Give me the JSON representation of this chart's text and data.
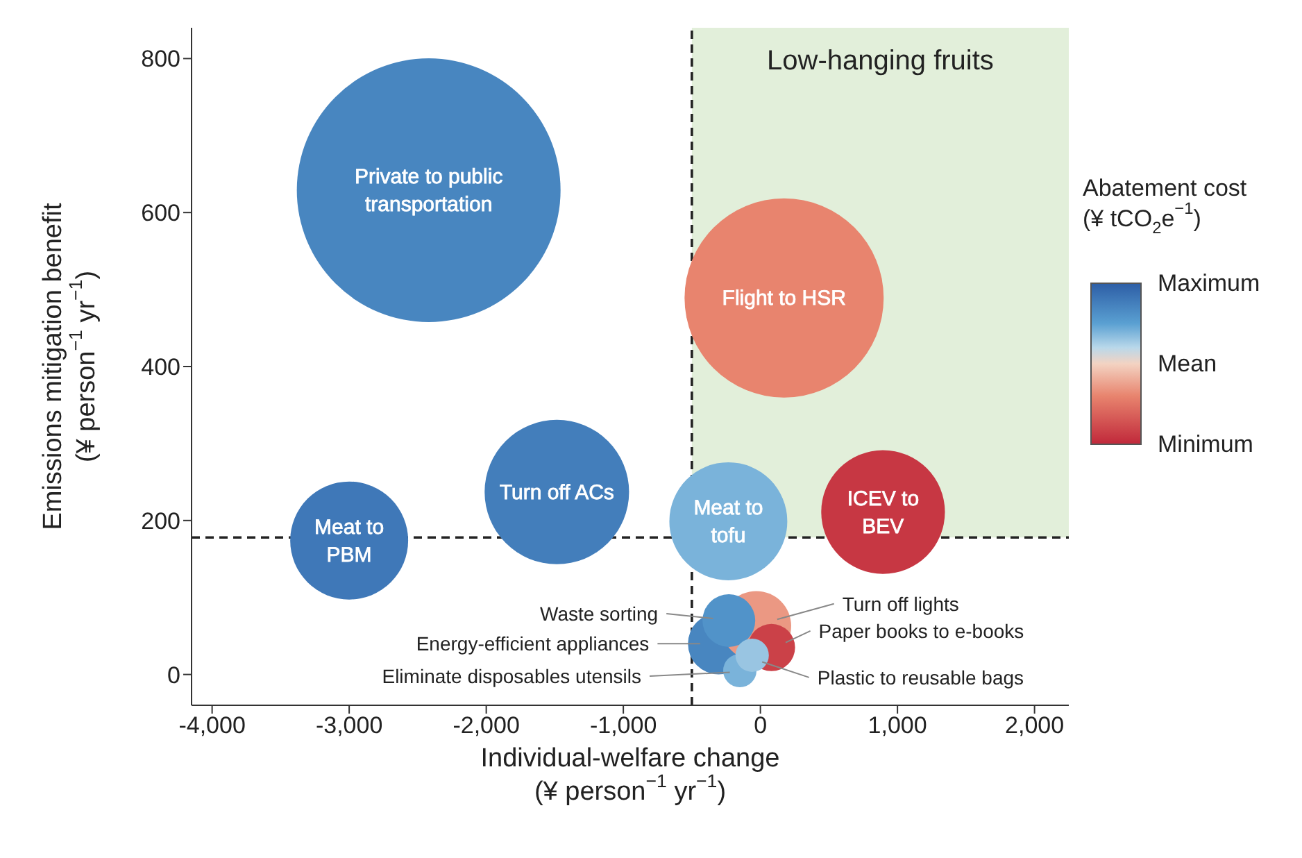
{
  "chart_data": {
    "type": "bubble",
    "xlabel": "Individual-welfare change\n(¥ person$^{−1}$ yr$^{−1}$)",
    "ylabel": "Emissions mitigation benefit\n(¥ person$^{−1}$ yr$^{−1}$)",
    "clabel": "Abatement cost\n(¥ tCO$_{2}$e$^{−1}$)",
    "clim": [
      0,
      1
    ],
    "cticks": [
      {
        "value": 1,
        "label": "Maximum"
      },
      {
        "value": 0.5,
        "label": "Mean"
      },
      {
        "value": 0,
        "label": "Minimum"
      }
    ],
    "xlim": [
      -4150,
      2250
    ],
    "xticks": [
      {
        "value": -4000,
        "label": "-4,000"
      },
      {
        "value": -3000,
        "label": "-3,000"
      },
      {
        "value": -2000,
        "label": "-2,000"
      },
      {
        "value": -1000,
        "label": "-1,000"
      },
      0,
      {
        "value": 1000,
        "label": "1,000"
      },
      {
        "value": 2000,
        "label": "2,000"
      }
    ],
    "ylim": [
      -40,
      840
    ],
    "yticks": [
      0,
      200,
      400,
      600,
      800
    ],
    "marker": "circle",
    "ref_lines": [
      {
        "axis": "x",
        "value": -500,
        "line_style": "dashed",
        "color": "#222222"
      },
      {
        "axis": "y",
        "value": 178,
        "line_style": "dashed",
        "color": "#222222"
      }
    ],
    "bands": [
      {
        "axis": "x",
        "from": -500,
        "to": 2250,
        "label": "Low-hanging fruits",
        "color": "#e2efda"
      }
    ],
    "series": [
      {
        "name": "Private to public\ntransportation",
        "x": [
          -2420
        ],
        "values": [
          629
        ],
        "sizes": [
          1
        ],
        "cvalues": [
          0.85
        ]
      },
      {
        "name": "Flight to HSR",
        "x": [
          173
        ],
        "values": [
          489
        ],
        "sizes": [
          0.57
        ],
        "cvalues": [
          0.3
        ]
      },
      {
        "name": "Meat to\nPBM",
        "x": [
          -3000
        ],
        "values": [
          174
        ],
        "sizes": [
          0.2
        ],
        "cvalues": [
          0.9
        ]
      },
      {
        "name": "Turn off ACs",
        "x": [
          -1485
        ],
        "values": [
          237
        ],
        "sizes": [
          0.3
        ],
        "cvalues": [
          0.88
        ]
      },
      {
        "name": "Meat to\ntofu",
        "x": [
          -234
        ],
        "values": [
          199
        ],
        "sizes": [
          0.2
        ],
        "cvalues": [
          0.7
        ]
      },
      {
        "name": "ICEV to\nBEV",
        "x": [
          895
        ],
        "values": [
          211
        ],
        "sizes": [
          0.22
        ],
        "cvalues": [
          0.05
        ]
      },
      {
        "name": "Energy-efficient appliances",
        "x": [
          -305
        ],
        "values": [
          40
        ],
        "sizes": [
          0.054
        ],
        "cvalues": [
          0.85
        ]
      },
      {
        "name": "Turn off lights",
        "x": [
          -30
        ],
        "values": [
          63
        ],
        "sizes": [
          0.07
        ],
        "cvalues": [
          0.35
        ]
      },
      {
        "name": "Waste sorting",
        "x": [
          -230
        ],
        "values": [
          70
        ],
        "sizes": [
          0.04
        ],
        "cvalues": [
          0.8
        ]
      },
      {
        "name": "Paper books to e-books",
        "x": [
          81
        ],
        "values": [
          35
        ],
        "sizes": [
          0.032
        ],
        "cvalues": [
          0.08
        ]
      },
      {
        "name": "Eliminate disposables utensils",
        "x": [
          -150
        ],
        "values": [
          5
        ],
        "sizes": [
          0.016
        ],
        "cvalues": [
          0.7
        ]
      },
      {
        "name": "Plastic to reusable bags",
        "x": [
          -60
        ],
        "values": [
          25
        ],
        "sizes": [
          0.016
        ],
        "cvalues": [
          0.65
        ]
      }
    ]
  }
}
